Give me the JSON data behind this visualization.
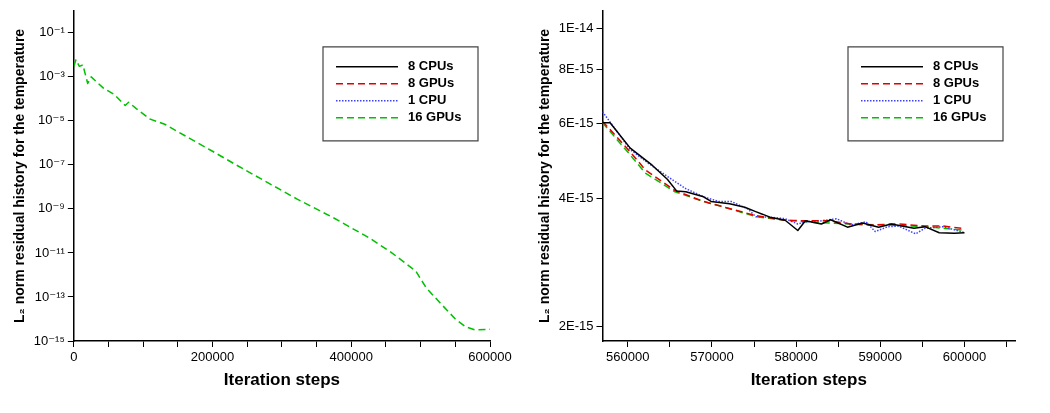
{
  "chart_data": [
    {
      "type": "line",
      "xlabel": "Iteration steps",
      "ylabel": "L₂ norm residual history for the temperature",
      "log": "y",
      "grid": false,
      "legend": "top right",
      "xlim": [
        0,
        600000
      ],
      "xticks": [
        0,
        {
          "value": 50000,
          "label": null
        },
        {
          "value": 100000,
          "label": null
        },
        {
          "value": 150000,
          "label": null
        },
        200000,
        {
          "value": 250000,
          "label": null
        },
        {
          "value": 300000,
          "label": null
        },
        {
          "value": 350000,
          "label": null
        },
        400000,
        {
          "value": 450000,
          "label": null
        },
        {
          "value": 500000,
          "label": null
        },
        {
          "value": 550000,
          "label": null
        },
        600000
      ],
      "ylim": [
        1e-15,
        1
      ],
      "yticks": [
        {
          "value": 1e-15,
          "label": "10⁻¹⁵"
        },
        {
          "value": 1e-13,
          "label": "10⁻¹³"
        },
        {
          "value": 1e-11,
          "label": "10⁻¹¹"
        },
        {
          "value": 1e-09,
          "label": "10⁻⁹"
        },
        {
          "value": 1e-07,
          "label": "10⁻⁷"
        },
        {
          "value": 1e-05,
          "label": "10⁻⁵"
        },
        {
          "value": 0.001,
          "label": "10⁻³"
        },
        {
          "value": 0.1,
          "label": "10⁻¹"
        }
      ],
      "series": [
        {
          "name": "8 CPUs",
          "color": "#000000",
          "line_style": "solid"
        },
        {
          "name": "8 GPUs",
          "color": "#e00000",
          "line_style": "dashed"
        },
        {
          "name": "1 CPU",
          "color": "#4040ff",
          "line_style": "dotted"
        },
        {
          "name": "16 GPUs",
          "color": "#00c000",
          "line_style": "dashed",
          "x": [
            0,
            3000,
            8000,
            13000,
            20000,
            25000,
            43000,
            58000,
            74000,
            79000,
            90000,
            110000,
            131000,
            167000,
            198000,
            234000,
            270000,
            322000,
            374000,
            426000,
            457000,
            493000,
            508000,
            529000,
            550000,
            565000,
            578000,
            600000
          ],
          "values": [
            0.003,
            0.006,
            0.003,
            0.0035,
            0.0005,
            0.001,
            0.0003,
            0.00016,
            5e-05,
            7e-05,
            3.6e-05,
            1.2e-05,
            7e-06,
            1.6e-06,
            4.5e-07,
            1e-07,
            2.3e-08,
            2.8e-09,
            4e-10,
            4.8e-11,
            1.1e-11,
            1.5e-12,
            2.6e-13,
            5e-14,
            1e-14,
            4.4e-15,
            3.2e-15,
            3.4e-15
          ]
        }
      ]
    },
    {
      "type": "line",
      "xlabel": "Iteration steps",
      "ylabel": "L₂ norm residual history for the temperature",
      "log": "y",
      "grid": false,
      "legend": "top right",
      "xlim": [
        557000,
        606000
      ],
      "xticks": [
        560000,
        {
          "value": 565000,
          "label": null
        },
        570000,
        {
          "value": 575000,
          "label": null
        },
        580000,
        {
          "value": 585000,
          "label": null
        },
        590000,
        {
          "value": 595000,
          "label": null
        },
        600000,
        {
          "value": 605000,
          "label": null
        }
      ],
      "ylim": [
        1.85e-15,
        1.1e-14
      ],
      "yticks": [
        {
          "value": 2e-15,
          "label": "2E-15"
        },
        {
          "value": 4e-15,
          "label": "4E-15"
        },
        {
          "value": 6e-15,
          "label": "6E-15"
        },
        {
          "value": 8e-15,
          "label": "8E-15"
        },
        {
          "value": 1e-14,
          "label": "1E-14"
        }
      ],
      "series": [
        {
          "name": "8 CPUs",
          "color": "#000000",
          "line_style": "solid",
          "x": [
            557000,
            557900,
            560300,
            562900,
            564700,
            565800,
            566900,
            569000,
            569900,
            572100,
            573900,
            575200,
            576900,
            578700,
            580200,
            581100,
            583000,
            584100,
            586100,
            587900,
            589800,
            591300,
            594000,
            595300,
            597000,
            598800,
            600000
          ],
          "values": [
            6.01e-15,
            6.01e-15,
            5.24e-15,
            4.78e-15,
            4.43e-15,
            4.16e-15,
            4.14e-15,
            4.03e-15,
            3.93e-15,
            3.88e-15,
            3.81e-15,
            3.72e-15,
            3.61e-15,
            3.55e-15,
            3.36e-15,
            3.54e-15,
            3.48e-15,
            3.56e-15,
            3.42e-15,
            3.5e-15,
            3.42e-15,
            3.48e-15,
            3.4e-15,
            3.43e-15,
            3.32e-15,
            3.31e-15,
            3.32e-15
          ]
        },
        {
          "name": "8 GPUs",
          "color": "#e00000",
          "line_style": "dashed",
          "x": [
            557000,
            559900,
            562100,
            565600,
            569000,
            571700,
            575200,
            578700,
            581300,
            583900,
            586500,
            588700,
            592200,
            595300,
            597500,
            599700
          ],
          "values": [
            6.06e-15,
            5.24e-15,
            4.66e-15,
            4.17e-15,
            3.93e-15,
            3.8e-15,
            3.64e-15,
            3.55e-15,
            3.54e-15,
            3.54e-15,
            3.48e-15,
            3.46e-15,
            3.48e-15,
            3.44e-15,
            3.44e-15,
            3.4e-15
          ]
        },
        {
          "name": "1 CPU",
          "color": "#4040ff",
          "line_style": "dotted",
          "x": [
            557000,
            560300,
            562500,
            564700,
            566900,
            569000,
            570800,
            572300,
            574300,
            575200,
            576900,
            578700,
            580200,
            581100,
            583000,
            584800,
            586500,
            588300,
            589400,
            590900,
            592200,
            594200,
            595300,
            597500,
            600000
          ],
          "values": [
            6.38e-15,
            5.2e-15,
            4.82e-15,
            4.5e-15,
            4.21e-15,
            4.03e-15,
            3.93e-15,
            3.93e-15,
            3.77e-15,
            3.62e-15,
            3.61e-15,
            3.58e-15,
            3.48e-15,
            3.52e-15,
            3.54e-15,
            3.58e-15,
            3.46e-15,
            3.52e-15,
            3.34e-15,
            3.43e-15,
            3.44e-15,
            3.3e-15,
            3.4e-15,
            3.43e-15,
            3.32e-15
          ]
        },
        {
          "name": "16 GPUs",
          "color": "#00c000",
          "line_style": "dashed",
          "x": [
            557000,
            559900,
            562100,
            565600,
            569000,
            571700,
            575200,
            578700,
            582200,
            586500,
            590900,
            595300,
            599700
          ],
          "values": [
            6.01e-15,
            5.16e-15,
            4.58e-15,
            4.14e-15,
            3.93e-15,
            3.8e-15,
            3.62e-15,
            3.55e-15,
            3.51e-15,
            3.48e-15,
            3.46e-15,
            3.43e-15,
            3.37e-15
          ]
        }
      ]
    }
  ]
}
